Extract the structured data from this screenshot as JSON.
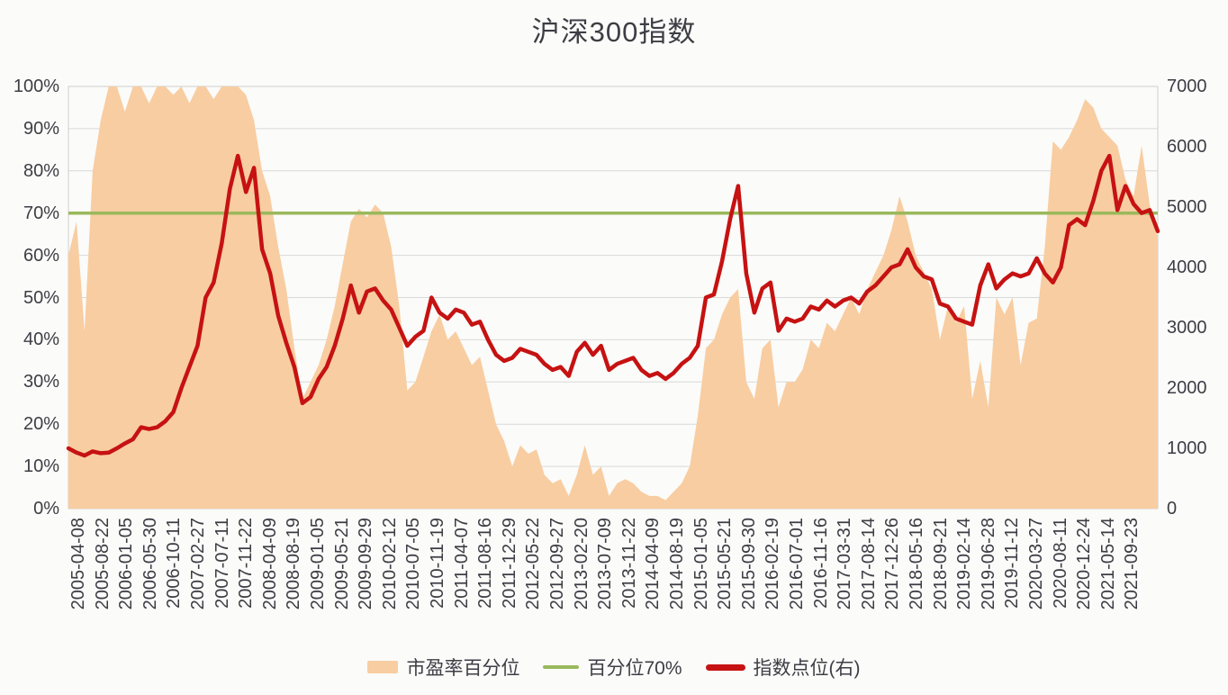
{
  "title": "沪深300指数",
  "legend": [
    {
      "label": "市盈率百分位",
      "type": "area",
      "color": "#F8CDA1"
    },
    {
      "label": "百分位70%",
      "type": "line",
      "color": "#9AB95C"
    },
    {
      "label": "指数点位(右)",
      "type": "line",
      "color": "#C61212"
    }
  ],
  "colors": {
    "background": "#FBFBF9",
    "grid": "#D9D9D9",
    "border": "#CFCFCF",
    "axis_text": "#3D3D45",
    "area_fill": "#F8CDA1",
    "red_line": "#C61212",
    "green_line": "#9AB95C"
  },
  "chart_data": {
    "type": "area",
    "title": "沪深300指数",
    "grid": "horizontal",
    "legend_position": "bottom",
    "left_axis": {
      "range": [
        0,
        100
      ],
      "ticks": [
        "0%",
        "10%",
        "20%",
        "30%",
        "40%",
        "50%",
        "60%",
        "70%",
        "80%",
        "90%",
        "100%"
      ]
    },
    "right_axis": {
      "range": [
        0,
        7000
      ],
      "ticks": [
        "0",
        "1000",
        "2000",
        "3000",
        "4000",
        "5000",
        "6000",
        "7000"
      ]
    },
    "reference_line": {
      "name": "百分位70%",
      "axis": "left",
      "value": 70,
      "color": "#9AB95C"
    },
    "x_tick_labels": [
      "2005-04-08",
      "2005-08-22",
      "2006-01-05",
      "2006-05-30",
      "2006-10-11",
      "2007-02-27",
      "2007-07-11",
      "2007-11-22",
      "2008-04-09",
      "2008-08-19",
      "2009-01-05",
      "2009-05-21",
      "2009-09-29",
      "2010-02-12",
      "2010-07-05",
      "2010-11-19",
      "2011-04-07",
      "2011-08-16",
      "2011-12-29",
      "2012-05-22",
      "2012-09-27",
      "2013-02-20",
      "2013-07-09",
      "2013-11-22",
      "2014-04-09",
      "2014-08-19",
      "2015-01-05",
      "2015-05-21",
      "2015-09-30",
      "2016-02-19",
      "2016-07-01",
      "2016-11-16",
      "2017-03-31",
      "2017-08-14",
      "2017-12-26",
      "2018-05-16",
      "2018-09-21",
      "2019-02-14",
      "2019-06-28",
      "2019-11-12",
      "2020-03-27",
      "2020-08-11",
      "2020-12-24",
      "2021-05-14",
      "2021-09-23"
    ],
    "series": [
      {
        "name": "市盈率百分位",
        "type": "area",
        "axis": "left",
        "color": "#F8CDA1",
        "values": [
          60,
          68,
          42,
          80,
          92,
          100,
          100,
          94,
          100,
          100,
          96,
          100,
          100,
          98,
          100,
          96,
          100,
          100,
          97,
          100,
          100,
          100,
          98,
          92,
          80,
          74,
          62,
          52,
          38,
          26,
          30,
          34,
          40,
          48,
          58,
          68,
          71,
          69,
          72,
          70,
          62,
          48,
          28,
          30,
          36,
          42,
          46,
          40,
          42,
          38,
          34,
          36,
          28,
          20,
          16,
          10,
          15,
          13,
          14,
          8,
          6,
          7,
          3,
          8,
          15,
          8,
          10,
          3,
          6,
          7,
          6,
          4,
          3,
          3,
          2,
          4,
          6,
          10,
          22,
          38,
          40,
          46,
          50,
          52,
          30,
          26,
          38,
          40,
          24,
          30,
          30,
          33,
          40,
          38,
          44,
          42,
          46,
          50,
          46,
          52,
          56,
          60,
          66,
          74,
          68,
          60,
          56,
          52,
          40,
          48,
          44,
          48,
          26,
          35,
          24,
          50,
          46,
          50,
          34,
          44,
          45,
          62,
          87,
          85,
          88,
          92,
          97,
          95,
          90,
          88,
          86,
          78,
          74,
          86,
          72,
          64
        ]
      },
      {
        "name": "指数点位(右)",
        "type": "line",
        "axis": "right",
        "color": "#C61212",
        "values": [
          1000,
          930,
          880,
          950,
          920,
          930,
          1000,
          1080,
          1150,
          1350,
          1320,
          1350,
          1450,
          1600,
          2000,
          2350,
          2700,
          3500,
          3750,
          4400,
          5300,
          5850,
          5250,
          5650,
          4300,
          3900,
          3200,
          2750,
          2350,
          1750,
          1850,
          2150,
          2350,
          2700,
          3150,
          3700,
          3250,
          3600,
          3650,
          3450,
          3300,
          3000,
          2700,
          2850,
          2950,
          3500,
          3250,
          3150,
          3300,
          3250,
          3050,
          3100,
          2800,
          2550,
          2450,
          2500,
          2650,
          2600,
          2550,
          2400,
          2300,
          2350,
          2200,
          2600,
          2750,
          2550,
          2700,
          2300,
          2400,
          2450,
          2500,
          2300,
          2200,
          2250,
          2150,
          2250,
          2400,
          2500,
          2700,
          3500,
          3550,
          4100,
          4800,
          5350,
          3900,
          3250,
          3650,
          3750,
          2950,
          3150,
          3100,
          3150,
          3350,
          3300,
          3450,
          3350,
          3450,
          3500,
          3400,
          3600,
          3700,
          3850,
          4000,
          4050,
          4300,
          4000,
          3850,
          3800,
          3400,
          3350,
          3150,
          3100,
          3050,
          3700,
          4050,
          3650,
          3800,
          3900,
          3850,
          3900,
          4150,
          3900,
          3750,
          4000,
          4700,
          4800,
          4700,
          5100,
          5600,
          5850,
          4950,
          5350,
          5050,
          4900,
          4950,
          4600
        ]
      }
    ]
  }
}
